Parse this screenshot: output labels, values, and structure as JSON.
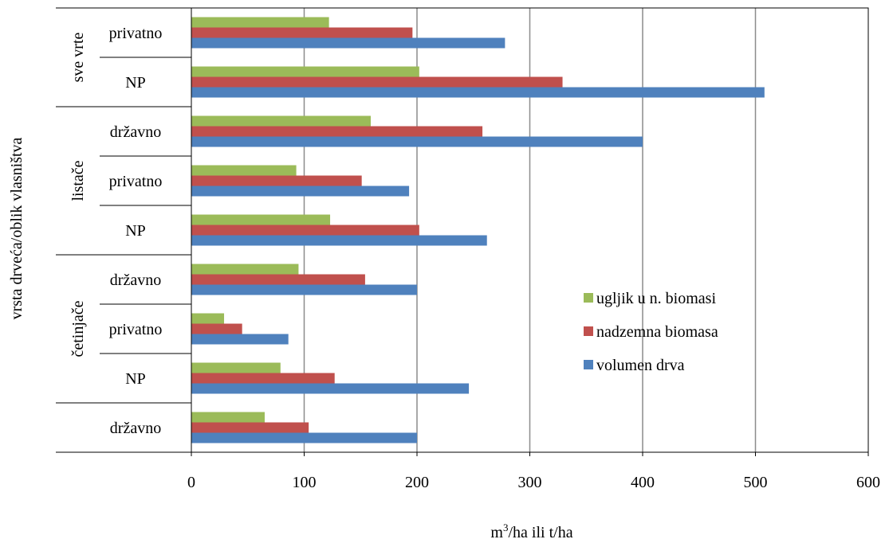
{
  "chart_data": {
    "type": "bar",
    "orientation": "horizontal",
    "xlabel": "m³/ha ili t/ha",
    "xlabel_base": "m",
    "xlabel_sup": "3",
    "xlabel_rest": "/ha ili t/ha",
    "ylabel": "vrsta drveća/oblik vlasništva",
    "xlim": [
      0,
      600
    ],
    "x_ticks": [
      "0",
      "100",
      "200",
      "300",
      "400",
      "500",
      "600"
    ],
    "grid": "vertical",
    "legend_position": "right-middle",
    "categories": [
      {
        "group": "sve vrte",
        "label": "privatno"
      },
      {
        "group": "sve vrte",
        "label": "NP"
      },
      {
        "group": "listače",
        "label": "državno"
      },
      {
        "group": "listače",
        "label": "privatno"
      },
      {
        "group": "listače",
        "label": "NP"
      },
      {
        "group": "četinjače",
        "label": "državno"
      },
      {
        "group": "četinjače",
        "label": "privatno"
      },
      {
        "group": "četinjače",
        "label": "NP"
      },
      {
        "group": "",
        "label": "državno"
      }
    ],
    "groups": [
      "sve vrte",
      "listače",
      "četinjače"
    ],
    "series": [
      {
        "name": "ugljik u n. biomasi",
        "color": "#9BBB59",
        "values": [
          122,
          202,
          159,
          93,
          123,
          95,
          29,
          79,
          65
        ]
      },
      {
        "name": "nadzemna biomasa",
        "color": "#C0504D",
        "values": [
          196,
          329,
          258,
          151,
          202,
          154,
          45,
          127,
          104
        ]
      },
      {
        "name": "volumen drva",
        "color": "#4F81BD",
        "values": [
          278,
          508,
          400,
          193,
          262,
          200,
          86,
          246,
          200
        ]
      }
    ]
  }
}
